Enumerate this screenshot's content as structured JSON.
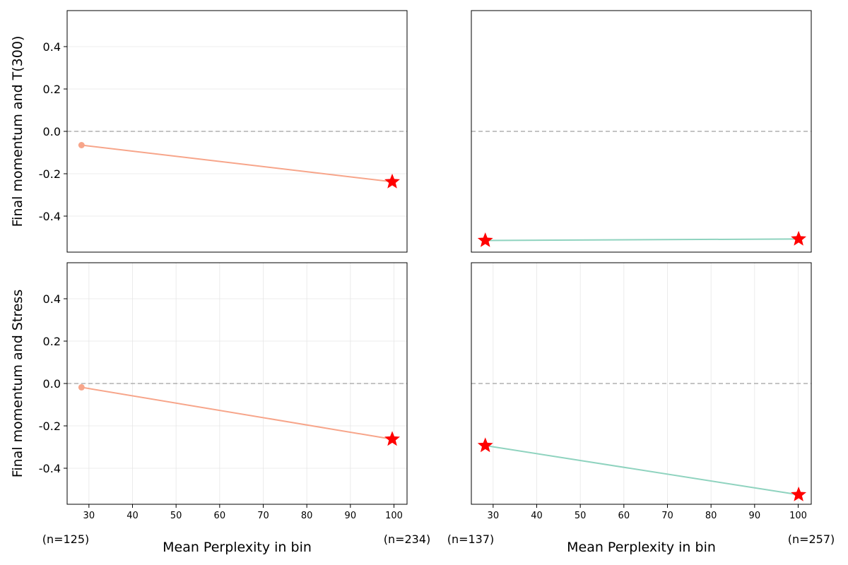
{
  "chart_data": [
    {
      "type": "line",
      "panel": "top-left",
      "ylabel": "Final momentum and T(300)",
      "xlabel": "",
      "yticks": [
        -0.4,
        -0.2,
        0.0,
        0.2,
        0.4
      ],
      "ylim": [
        -0.57,
        0.57
      ],
      "xlim": [
        25,
        103
      ],
      "x": [
        28.3,
        99.6
      ],
      "series": [
        {
          "color": "#f7a58a",
          "values": [
            -0.065,
            -0.238
          ],
          "star_points": [
            1
          ]
        }
      ],
      "reference_line": 0
    },
    {
      "type": "line",
      "panel": "top-right",
      "ylabel": "",
      "xlabel": "",
      "ylim": [
        -0.57,
        0.57
      ],
      "xlim": [
        25,
        103
      ],
      "x": [
        28.2,
        100.1
      ],
      "series": [
        {
          "color": "#8fd3bf",
          "values": [
            -0.515,
            -0.508
          ],
          "star_points": [
            0,
            1
          ]
        }
      ],
      "reference_line": 0
    },
    {
      "type": "line",
      "panel": "bottom-left",
      "ylabel": "Final momentum and Stress",
      "xlabel": "Mean Perplexity in bin",
      "yticks": [
        -0.4,
        -0.2,
        0.0,
        0.2,
        0.4
      ],
      "xticks": [
        30,
        40,
        50,
        60,
        70,
        80,
        90,
        100
      ],
      "ylim": [
        -0.57,
        0.57
      ],
      "xlim": [
        25,
        103
      ],
      "x": [
        28.3,
        99.6
      ],
      "series": [
        {
          "color": "#f7a58a",
          "values": [
            -0.018,
            -0.263
          ],
          "star_points": [
            1
          ]
        }
      ],
      "reference_line": 0,
      "bin_counts": [
        "(n=125)",
        "(n=234)"
      ]
    },
    {
      "type": "line",
      "panel": "bottom-right",
      "ylabel": "",
      "xlabel": "Mean Perplexity in bin",
      "xticks": [
        30,
        40,
        50,
        60,
        70,
        80,
        90,
        100
      ],
      "ylim": [
        -0.57,
        0.57
      ],
      "xlim": [
        25,
        103
      ],
      "x": [
        28.2,
        100.1
      ],
      "series": [
        {
          "color": "#8fd3bf",
          "values": [
            -0.293,
            -0.525
          ],
          "star_points": [
            0,
            1
          ]
        }
      ],
      "reference_line": 0,
      "bin_counts": [
        "(n=137)",
        "(n=257)"
      ]
    }
  ],
  "colors": {
    "reference": "#b0b0b0",
    "star": "#ff0000",
    "grid": "#e6e6e6"
  }
}
